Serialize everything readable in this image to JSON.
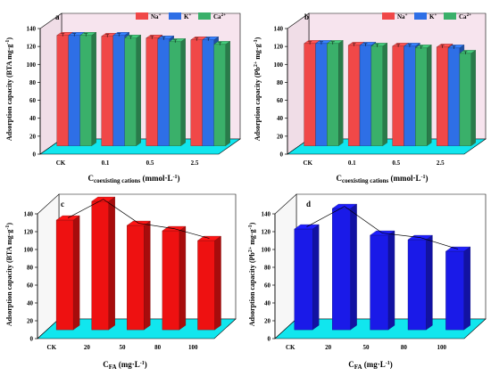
{
  "colors": {
    "na": "#f04848",
    "k": "#2e6fe6",
    "ca": "#3ab06a",
    "red_bar": "#ee1111",
    "blue_bar": "#1a1ae8",
    "floor": "#11e6ee",
    "wall": "#f7e4ee"
  },
  "chart_data": [
    {
      "panel": "a",
      "type": "bar",
      "categories": [
        "CK",
        "0.1",
        "0.5",
        "2.5"
      ],
      "series": [
        {
          "name": "Na+",
          "values": [
            123,
            122,
            120,
            118
          ]
        },
        {
          "name": "K+",
          "values": [
            123,
            123,
            119,
            118
          ]
        },
        {
          "name": "Ca2+",
          "values": [
            123,
            120,
            116,
            113
          ]
        }
      ],
      "ylabel": "Adsorption capacity (BTA mg·g⁻¹)",
      "xlabel": "Ccoexisting cations (mmol·L⁻¹)",
      "ylim": [
        0,
        140
      ],
      "yticks": [
        "0",
        "20",
        "40",
        "60",
        "80",
        "100",
        "120",
        "140"
      ],
      "legend": "top-right"
    },
    {
      "panel": "b",
      "type": "bar",
      "categories": [
        "CK",
        "0.1",
        "0.5",
        "2.5"
      ],
      "series": [
        {
          "name": "Na+",
          "values": [
            114,
            112,
            111,
            110
          ]
        },
        {
          "name": "K+",
          "values": [
            114,
            112,
            111,
            109
          ]
        },
        {
          "name": "Ca2+",
          "values": [
            114,
            111,
            109,
            103
          ]
        }
      ],
      "ylabel": "Adsorption capacity (Pb²⁺ mg·g⁻¹)",
      "xlabel": "Ccoexisting cations (mmol·L⁻¹)",
      "ylim": [
        0,
        140
      ],
      "yticks": [
        "0",
        "20",
        "40",
        "60",
        "80",
        "100",
        "120",
        "140"
      ],
      "legend": "top-right"
    },
    {
      "panel": "c",
      "type": "bar",
      "categories": [
        "CK",
        "20",
        "50",
        "80",
        "100"
      ],
      "values": [
        123,
        144,
        117,
        111,
        100
      ],
      "ylabel": "Adsorption capacity (BTA mg·g⁻¹)",
      "xlabel": "CFA (mg·L⁻¹)",
      "ylim": [
        0,
        140
      ],
      "yticks": [
        "0",
        "20",
        "40",
        "60",
        "80",
        "100",
        "120",
        "140"
      ]
    },
    {
      "panel": "d",
      "type": "bar",
      "categories": [
        "CK",
        "20",
        "50",
        "80",
        "100"
      ],
      "values": [
        113,
        136,
        106,
        101,
        88
      ],
      "ylabel": "Adsorption capacity (Pb²⁺ mg·g⁻¹)",
      "xlabel": "CFA (mg·L⁻¹)",
      "ylim": [
        0,
        140
      ],
      "yticks": [
        "0",
        "20",
        "40",
        "60",
        "80",
        "100",
        "120",
        "140"
      ]
    }
  ],
  "legend_labels": {
    "na": "Na",
    "na_sup": "+",
    "k": "K",
    "k_sup": "+",
    "ca": "Ca",
    "ca_sup": "2+"
  },
  "panel_labels": [
    "a",
    "b",
    "c",
    "d"
  ],
  "ylabels": {
    "a": {
      "pre": "Adsorption capacity (BTA mg·g",
      "sup": "-1",
      "post": ")"
    },
    "b": {
      "pre": "Adsorption capacity (Pb",
      "sup1": "2+",
      "mid": " mg·g",
      "sup": "-1",
      "post": ")"
    },
    "c": {
      "pre": "Adsorption capacity (BTA mg·g",
      "sup": "-1",
      "post": ")"
    },
    "d": {
      "pre": "Adsorption capacity (Pb",
      "sup1": "2+",
      "mid": " mg·g",
      "sup": "-1",
      "post": ")"
    }
  },
  "xlabels": {
    "ab": {
      "main": "C",
      "sub": "coexisting cations",
      "rest": " (mmol·L",
      "sup": "-1",
      "post": ")"
    },
    "cd": {
      "main": "C",
      "sub": "FA",
      "rest": " (mg·L",
      "sup": "-1",
      "post": ")"
    }
  }
}
